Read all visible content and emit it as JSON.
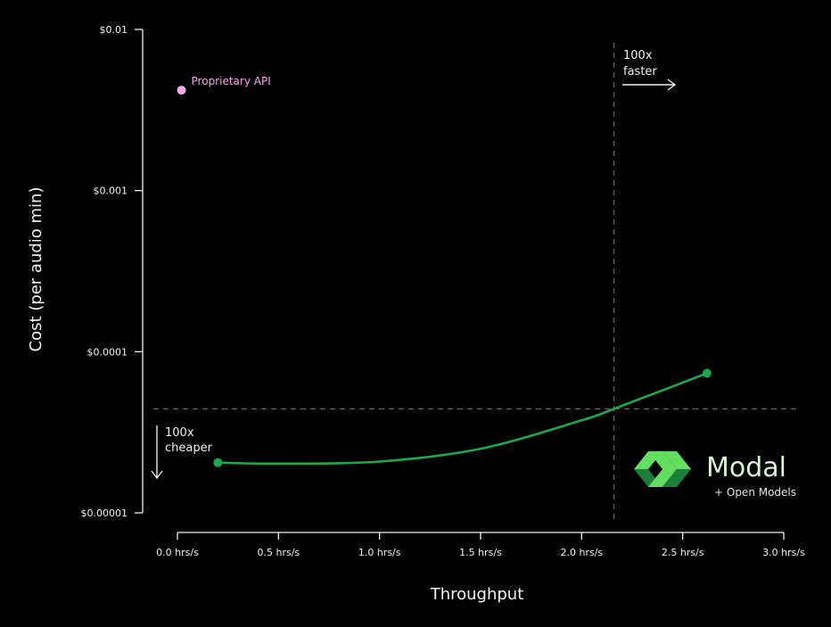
{
  "chart_data": {
    "type": "scatter",
    "xlabel": "Throughput",
    "ylabel": "Cost (per audio min)",
    "x_ticks": [
      {
        "value": 0.0,
        "label": "0.0 hrs/s"
      },
      {
        "value": 0.5,
        "label": "0.5 hrs/s"
      },
      {
        "value": 1.0,
        "label": "1.0 hrs/s"
      },
      {
        "value": 1.5,
        "label": "1.5 hrs/s"
      },
      {
        "value": 2.0,
        "label": "2.0 hrs/s"
      },
      {
        "value": 2.5,
        "label": "2.5 hrs/s"
      },
      {
        "value": 3.0,
        "label": "3.0 hrs/s"
      }
    ],
    "y_ticks": [
      {
        "value": 0.01,
        "label": "$0.01"
      },
      {
        "value": 0.001,
        "label": "$0.001"
      },
      {
        "value": 0.0001,
        "label": "$0.0001"
      },
      {
        "value": 1e-05,
        "label": "$0.00001"
      }
    ],
    "xlim": [
      0.0,
      3.0
    ],
    "ylim": [
      1e-05,
      0.01
    ],
    "y_scale": "log",
    "grid": false,
    "series": [
      {
        "name": "Proprietary API",
        "color": "#f6a8e8",
        "points": [
          {
            "x": 0.02,
            "y": 0.0042
          }
        ]
      },
      {
        "name": "Modal + Open Models",
        "color": "#1fa64f",
        "curve": [
          {
            "x": 0.2,
            "y": 2.05e-05
          },
          {
            "x": 0.5,
            "y": 2.02e-05
          },
          {
            "x": 1.0,
            "y": 2.08e-05
          },
          {
            "x": 1.5,
            "y": 2.5e-05
          },
          {
            "x": 2.0,
            "y": 3.75e-05
          },
          {
            "x": 2.16,
            "y": 4.42e-05
          },
          {
            "x": 2.62,
            "y": 7.35e-05
          }
        ],
        "points": [
          {
            "x": 0.2,
            "y": 2.05e-05
          },
          {
            "x": 2.62,
            "y": 7.35e-05
          }
        ]
      }
    ],
    "reference_lines": {
      "vertical_x": 2.16,
      "horizontal_y": 4.42e-05,
      "color": "#777777"
    },
    "annotations": {
      "faster": {
        "line1": "100x",
        "line2": "faster"
      },
      "cheaper": {
        "line1": "100x",
        "line2": "cheaper"
      }
    }
  },
  "brand": {
    "name": "Modal",
    "subtitle": "+ Open Models",
    "logo_icon": "modal-logo-icon",
    "logo_color_light": "#62de61",
    "logo_color_dark": "#1b7f3a"
  }
}
